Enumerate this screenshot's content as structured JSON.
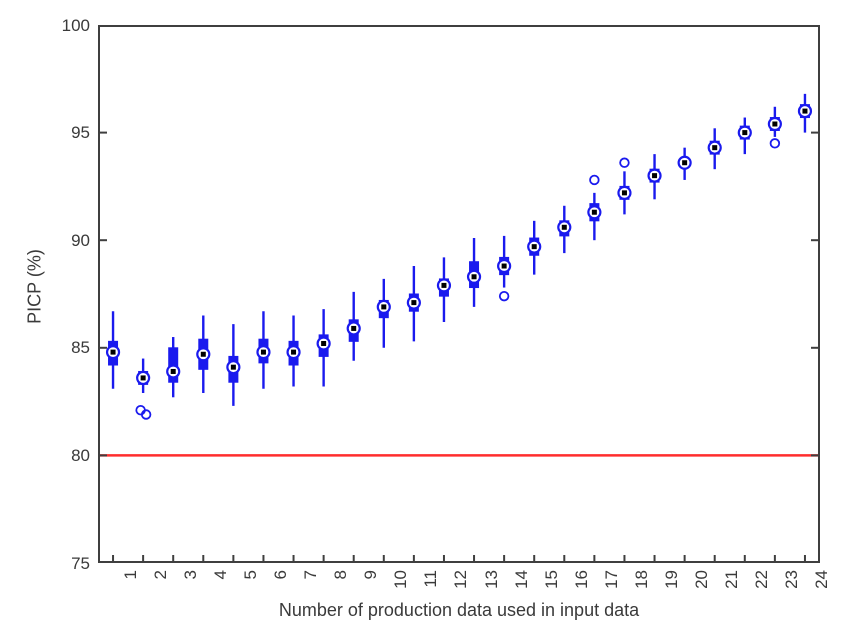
{
  "figure": {
    "background": "#ffffff",
    "frame_color": "#3f3f3f",
    "text_color": "#3a3a3a"
  },
  "chart_data": {
    "type": "boxplot",
    "title": "",
    "xlabel": "Number of production data used in input data",
    "ylabel": "PICP (%)",
    "ylim": [
      75,
      100
    ],
    "yticks": [
      "75",
      "80",
      "85",
      "90",
      "95",
      "100"
    ],
    "ytick_values": [
      75,
      80,
      85,
      90,
      95,
      100
    ],
    "grid": false,
    "legend": null,
    "categories": [
      "1",
      "2",
      "3",
      "4",
      "5",
      "6",
      "7",
      "8",
      "9",
      "10",
      "11",
      "12",
      "13",
      "14",
      "15",
      "16",
      "17",
      "18",
      "19",
      "20",
      "21",
      "22",
      "23",
      "24"
    ],
    "reference_line": {
      "y": 80,
      "color": "#ff2d2d"
    },
    "box_color": "#1a1aee",
    "whisker_color": "#1a1aee",
    "outlier_color": "#1a1aee",
    "median_marker": {
      "shape": "circle-with-center-square",
      "ring_color": "#1a1aee",
      "fill_color": "#ffffff",
      "center_color": "#000000"
    },
    "boxes": [
      {
        "category": "1",
        "whisker_low": 83.1,
        "q1": 84.2,
        "median": 84.8,
        "q3": 85.3,
        "whisker_high": 86.7,
        "outliers": []
      },
      {
        "category": "2",
        "whisker_low": 82.9,
        "q1": 83.3,
        "median": 83.6,
        "q3": 83.9,
        "whisker_high": 84.5,
        "outliers": [
          82.1,
          81.9
        ]
      },
      {
        "category": "3",
        "whisker_low": 82.7,
        "q1": 83.4,
        "median": 83.9,
        "q3": 85.0,
        "whisker_high": 85.5,
        "outliers": []
      },
      {
        "category": "4",
        "whisker_low": 82.9,
        "q1": 84.0,
        "median": 84.7,
        "q3": 85.4,
        "whisker_high": 86.5,
        "outliers": []
      },
      {
        "category": "5",
        "whisker_low": 82.3,
        "q1": 83.4,
        "median": 84.1,
        "q3": 84.6,
        "whisker_high": 86.1,
        "outliers": []
      },
      {
        "category": "6",
        "whisker_low": 83.1,
        "q1": 84.3,
        "median": 84.8,
        "q3": 85.4,
        "whisker_high": 86.7,
        "outliers": []
      },
      {
        "category": "7",
        "whisker_low": 83.2,
        "q1": 84.2,
        "median": 84.8,
        "q3": 85.3,
        "whisker_high": 86.5,
        "outliers": []
      },
      {
        "category": "8",
        "whisker_low": 83.2,
        "q1": 84.6,
        "median": 85.2,
        "q3": 85.6,
        "whisker_high": 86.8,
        "outliers": []
      },
      {
        "category": "9",
        "whisker_low": 84.4,
        "q1": 85.3,
        "median": 85.9,
        "q3": 86.3,
        "whisker_high": 87.6,
        "outliers": []
      },
      {
        "category": "10",
        "whisker_low": 85.0,
        "q1": 86.4,
        "median": 86.9,
        "q3": 87.2,
        "whisker_high": 88.2,
        "outliers": []
      },
      {
        "category": "11",
        "whisker_low": 85.3,
        "q1": 86.7,
        "median": 87.1,
        "q3": 87.5,
        "whisker_high": 88.8,
        "outliers": []
      },
      {
        "category": "12",
        "whisker_low": 86.2,
        "q1": 87.4,
        "median": 87.9,
        "q3": 88.2,
        "whisker_high": 89.2,
        "outliers": []
      },
      {
        "category": "13",
        "whisker_low": 86.9,
        "q1": 87.8,
        "median": 88.3,
        "q3": 89.0,
        "whisker_high": 90.1,
        "outliers": []
      },
      {
        "category": "14",
        "whisker_low": 87.8,
        "q1": 88.4,
        "median": 88.8,
        "q3": 89.2,
        "whisker_high": 90.2,
        "outliers": [
          87.4
        ]
      },
      {
        "category": "15",
        "whisker_low": 88.4,
        "q1": 89.3,
        "median": 89.7,
        "q3": 90.1,
        "whisker_high": 90.9,
        "outliers": []
      },
      {
        "category": "16",
        "whisker_low": 89.4,
        "q1": 90.2,
        "median": 90.6,
        "q3": 90.9,
        "whisker_high": 91.6,
        "outliers": []
      },
      {
        "category": "17",
        "whisker_low": 90.0,
        "q1": 90.9,
        "median": 91.3,
        "q3": 91.7,
        "whisker_high": 92.2,
        "outliers": [
          92.8
        ]
      },
      {
        "category": "18",
        "whisker_low": 91.2,
        "q1": 91.9,
        "median": 92.2,
        "q3": 92.5,
        "whisker_high": 93.2,
        "outliers": [
          93.6
        ]
      },
      {
        "category": "19",
        "whisker_low": 91.9,
        "q1": 92.7,
        "median": 93.0,
        "q3": 93.3,
        "whisker_high": 94.0,
        "outliers": []
      },
      {
        "category": "20",
        "whisker_low": 92.8,
        "q1": 93.4,
        "median": 93.6,
        "q3": 93.8,
        "whisker_high": 94.3,
        "outliers": []
      },
      {
        "category": "21",
        "whisker_low": 93.3,
        "q1": 94.0,
        "median": 94.3,
        "q3": 94.6,
        "whisker_high": 95.2,
        "outliers": []
      },
      {
        "category": "22",
        "whisker_low": 94.0,
        "q1": 94.7,
        "median": 95.0,
        "q3": 95.3,
        "whisker_high": 95.7,
        "outliers": []
      },
      {
        "category": "23",
        "whisker_low": 94.8,
        "q1": 95.1,
        "median": 95.4,
        "q3": 95.7,
        "whisker_high": 96.2,
        "outliers": [
          94.5
        ]
      },
      {
        "category": "24",
        "whisker_low": 95.0,
        "q1": 95.7,
        "median": 96.0,
        "q3": 96.3,
        "whisker_high": 96.8,
        "outliers": []
      }
    ]
  }
}
